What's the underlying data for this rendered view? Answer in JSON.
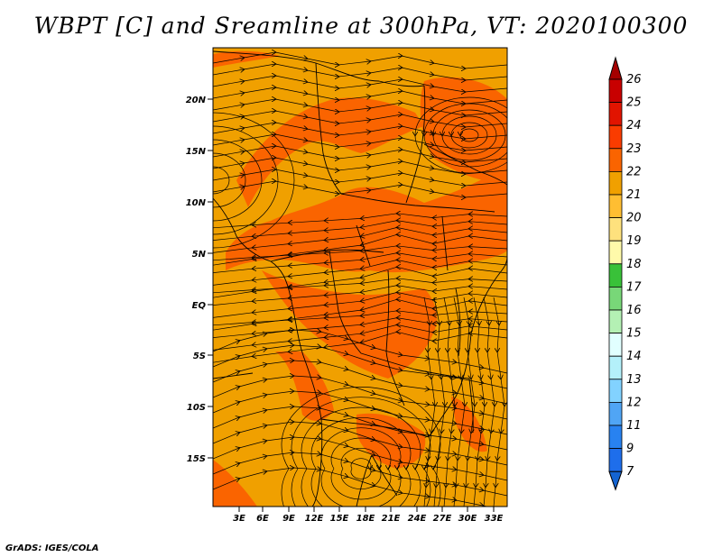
{
  "title": "WBPT [C] and Sreamline at 300hPa, VT: 2020100300",
  "credit": "GrADS: IGES/COLA",
  "map": {
    "lat_labels": [
      "20N",
      "15N",
      "10N",
      "5N",
      "EQ",
      "5S",
      "10S",
      "15S"
    ],
    "lon_labels": [
      "3E",
      "6E",
      "9E",
      "12E",
      "15E",
      "18E",
      "21E",
      "24E",
      "27E",
      "30E",
      "33E"
    ],
    "lon_range": [
      0,
      35
    ],
    "lat_range": [
      -20,
      24
    ],
    "base_color": "#f0a000",
    "warm_color": "#fa6400"
  },
  "colorbar": {
    "labels": [
      "26",
      "25",
      "24",
      "23",
      "22",
      "21",
      "20",
      "19",
      "18",
      "17",
      "16",
      "15",
      "14",
      "13",
      "12",
      "11",
      "9",
      "7"
    ],
    "colors": [
      "#a50000",
      "#c80000",
      "#e11400",
      "#fa3c00",
      "#fa6400",
      "#f0a000",
      "#ffbe32",
      "#fee17d",
      "#fffaaa",
      "#39c139",
      "#78d778",
      "#b4f0b4",
      "#e1ffff",
      "#b4f0fa",
      "#82d2ff",
      "#50a5f5",
      "#2882f0",
      "#1e6eeb",
      "#1464d2"
    ]
  }
}
